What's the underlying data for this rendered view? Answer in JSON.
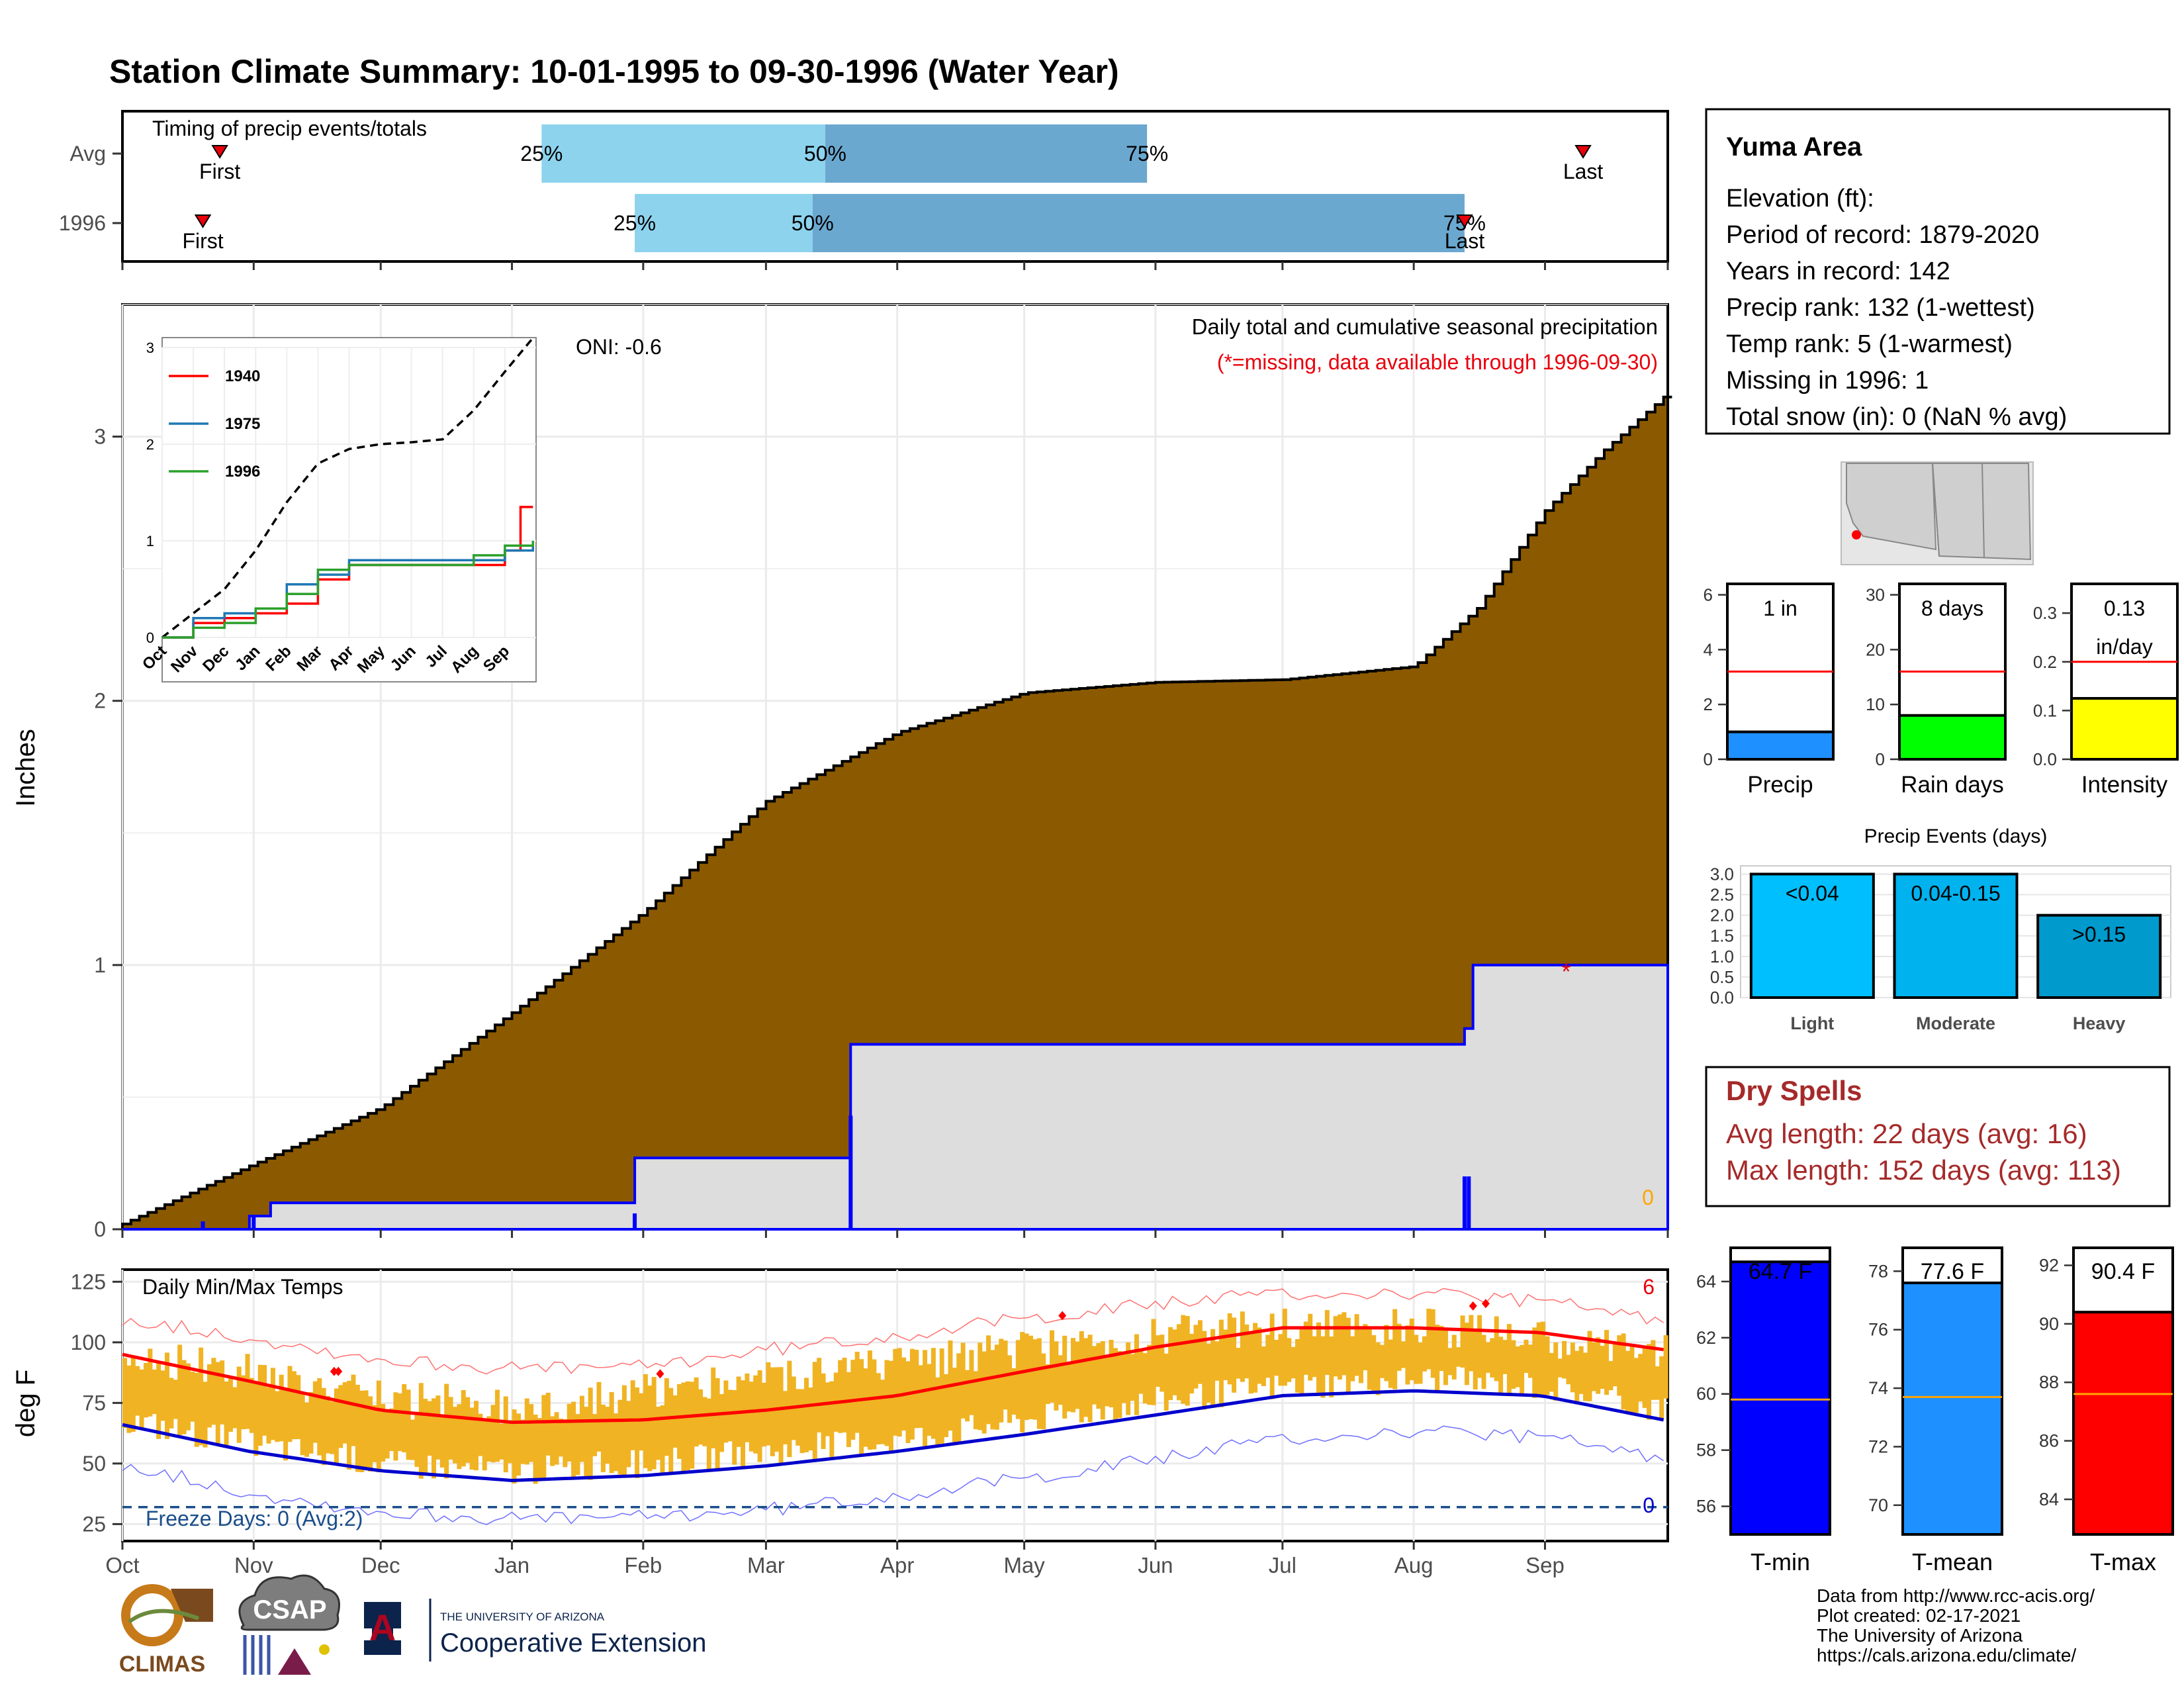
{
  "title": "Station Climate Summary: 10-01-1995 to 09-30-1996 (Water Year)",
  "colors": {
    "title": "#8b2500",
    "precip_cum": "#8b5a00",
    "precip_avg_fill": "#dddddd",
    "precip_line": "#0000ff",
    "tmax_avg": "#ff0000",
    "tmin_avg": "#0000cc",
    "temp_bars": "#f0b323",
    "bar_light": "#8dd3ee",
    "bar_dark": "#6ba8d0",
    "dry_spell": "#a52a2a"
  },
  "timing": {
    "title": "Timing of precip events/totals",
    "rows": [
      {
        "label": "Avg",
        "first_label": "First",
        "last_label": "Last",
        "first_doy": 23,
        "last_doy": 345,
        "p25_doy": 99,
        "p50_doy": 166,
        "p75_doy": 242,
        "p25_label": "25%",
        "p50_label": "50%",
        "p75_label": "75%"
      },
      {
        "label": "1996",
        "first_label": "First",
        "last_label": "Last",
        "first_doy": 19,
        "last_doy": 317,
        "p25_doy": 121,
        "p50_doy": 163,
        "p75_doy": 317,
        "p25_label": "25%",
        "p50_label": "50%",
        "p75_label": "75%"
      }
    ]
  },
  "precip_panel": {
    "title": "Daily total and cumulative seasonal precipitation",
    "subtitle": "(*=missing, data available through 1996-09-30)",
    "ylabel": "Inches",
    "oni": "ONI: -0.6",
    "yticks": [
      "0",
      "1",
      "2",
      "3"
    ],
    "missing_marker": "*",
    "zero_label": "0"
  },
  "inset": {
    "yticks": [
      "0",
      "1",
      "2",
      "3"
    ],
    "xticks": [
      "Oct",
      "Nov",
      "Dec",
      "Jan",
      "Feb",
      "Mar",
      "Apr",
      "May",
      "Jun",
      "Jul",
      "Aug",
      "Sep"
    ],
    "legend": [
      {
        "name": "1940",
        "color": "#ff0000"
      },
      {
        "name": "1975",
        "color": "#1f77b4"
      },
      {
        "name": "1996",
        "color": "#2ca02c"
      }
    ]
  },
  "temp_panel": {
    "title": "Daily Min/Max Temps",
    "ylabel": "deg F",
    "yticks": [
      "25",
      "50",
      "75",
      "100",
      "125"
    ],
    "freeze_label": "Freeze Days: 0 (Avg:2)",
    "count_hot": "6",
    "count_freeze": "0"
  },
  "months": [
    "Oct",
    "Nov",
    "Dec",
    "Jan",
    "Feb",
    "Mar",
    "Apr",
    "May",
    "Jun",
    "Jul",
    "Aug",
    "Sep"
  ],
  "info": {
    "station": "Yuma Area",
    "lines": [
      "Elevation (ft):",
      "Period of record: 1879-2020",
      "Years in record: 142",
      "Precip rank: 132 (1-wettest)",
      "Temp rank: 5 (1-warmest)",
      "Missing in 1996: 1",
      "Total snow (in): 0 (NaN % avg)"
    ]
  },
  "mini_bars": [
    {
      "label": "Precip",
      "value_text": "1 in",
      "value": 1.0,
      "avg": 3.2,
      "ymax": 6.4,
      "ticks": [
        "0",
        "2",
        "4",
        "6"
      ],
      "tick_vals": [
        0,
        2,
        4,
        6
      ],
      "color": "#1e90ff"
    },
    {
      "label": "Rain days",
      "value_text": "8 days",
      "value": 8,
      "avg": 16,
      "ymax": 32,
      "ticks": [
        "0",
        "10",
        "20",
        "30"
      ],
      "tick_vals": [
        0,
        10,
        20,
        30
      ],
      "color": "#00ff00"
    },
    {
      "label": "Intensity",
      "value_text": "0.13",
      "value_text2": "in/day",
      "value": 0.125,
      "avg": 0.2,
      "ymax": 0.36,
      "ticks": [
        "0.0",
        "0.1",
        "0.2",
        "0.3"
      ],
      "tick_vals": [
        0,
        0.1,
        0.2,
        0.3
      ],
      "color": "#ffff00"
    }
  ],
  "precip_events": {
    "title": "Precip Events (days)",
    "yticks": [
      "0.0",
      "0.5",
      "1.0",
      "1.5",
      "2.0",
      "2.5",
      "3.0"
    ],
    "bars": [
      {
        "label": "Light",
        "range": "<0.04",
        "value": 3,
        "color": "#00bfff"
      },
      {
        "label": "Moderate",
        "range": "0.04-0.15",
        "value": 3,
        "color": "#00b2ee"
      },
      {
        "label": "Heavy",
        "range": ">0.15",
        "value": 2,
        "color": "#009acd"
      }
    ]
  },
  "dry_spells": {
    "title": "Dry Spells",
    "avg": "Avg length: 22 days (avg: 16)",
    "max": "Max length: 152 days (avg: 113)"
  },
  "temp_bars": [
    {
      "label": "T-min",
      "value_text": "64.7 F",
      "value": 64.7,
      "avg": 59.8,
      "ymin": 55,
      "ymax": 65.2,
      "ticks": [
        "56",
        "58",
        "60",
        "62",
        "64"
      ],
      "tick_vals": [
        56,
        58,
        60,
        62,
        64
      ],
      "color": "#0000ff"
    },
    {
      "label": "T-mean",
      "value_text": "77.6 F",
      "value": 77.6,
      "avg": 73.7,
      "ymin": 69,
      "ymax": 78.8,
      "ticks": [
        "70",
        "72",
        "74",
        "76",
        "78"
      ],
      "tick_vals": [
        70,
        72,
        74,
        76,
        78
      ],
      "color": "#1e90ff"
    },
    {
      "label": "T-max",
      "value_text": "90.4 F",
      "value": 90.4,
      "avg": 87.6,
      "ymin": 82.8,
      "ymax": 92.6,
      "ticks": [
        "84",
        "86",
        "88",
        "90",
        "92"
      ],
      "tick_vals": [
        84,
        86,
        88,
        90,
        92
      ],
      "color": "#ff0000"
    }
  ],
  "footer": {
    "lines": [
      "Data from http://www.rcc-acis.org/",
      "Plot created: 02-17-2021",
      "The University of Arizona",
      "https://cals.arizona.edu/climate/"
    ],
    "climas": "CLIMAS",
    "csap": "CSAP",
    "ua_small": "THE UNIVERSITY OF ARIZONA",
    "ua_big": "Cooperative Extension",
    "ua_letter": "A"
  },
  "chart_data": [
    {
      "type": "area",
      "title": "Daily total and cumulative seasonal precipitation",
      "ylabel": "Inches",
      "ylim": [
        0,
        3.5
      ],
      "x_months": [
        "Oct",
        "Nov",
        "Dec",
        "Jan",
        "Feb",
        "Mar",
        "Apr",
        "May",
        "Jun",
        "Jul",
        "Aug",
        "Sep"
      ],
      "series": [
        {
          "name": "average cumulative",
          "x_doy": [
            0,
            30,
            61,
            92,
            123,
            152,
            183,
            213,
            244,
            274,
            305,
            320,
            336,
            350,
            364
          ],
          "values": [
            0.02,
            0.24,
            0.46,
            0.82,
            1.2,
            1.62,
            1.88,
            2.03,
            2.07,
            2.08,
            2.13,
            2.35,
            2.72,
            2.95,
            3.15
          ]
        },
        {
          "name": "1996 cumulative",
          "x_doy": [
            0,
            30,
            35,
            121,
            172,
            317,
            319,
            364
          ],
          "values": [
            0.0,
            0.05,
            0.1,
            0.27,
            0.7,
            0.76,
            1.0,
            1.0
          ]
        }
      ]
    },
    {
      "type": "line",
      "title": "inset cumulative comparison",
      "ylim": [
        0,
        3
      ],
      "series": [
        {
          "name": "average",
          "x_month": [
            0,
            1,
            2,
            3,
            4,
            5,
            6,
            7,
            8,
            9,
            10,
            11,
            11.9
          ],
          "values": [
            0.0,
            0.25,
            0.5,
            0.9,
            1.4,
            1.8,
            1.95,
            2.0,
            2.02,
            2.05,
            2.35,
            2.75,
            3.1
          ]
        },
        {
          "name": "1940",
          "x_month": [
            0,
            1,
            2,
            3,
            4,
            5,
            6,
            7,
            8,
            9,
            10,
            11,
            11.5,
            11.9
          ],
          "values": [
            0.0,
            0.15,
            0.2,
            0.25,
            0.35,
            0.6,
            0.75,
            0.75,
            0.75,
            0.75,
            0.75,
            0.9,
            1.35,
            1.35
          ]
        },
        {
          "name": "1975",
          "x_month": [
            0,
            1,
            2,
            3,
            4,
            5,
            6,
            7,
            8,
            9,
            10,
            11,
            11.9
          ],
          "values": [
            0.0,
            0.2,
            0.25,
            0.3,
            0.55,
            0.65,
            0.8,
            0.8,
            0.8,
            0.8,
            0.8,
            0.9,
            0.95
          ]
        },
        {
          "name": "1996",
          "x_month": [
            0,
            1,
            2,
            3,
            4,
            5,
            6,
            7,
            8,
            9,
            10,
            11,
            11.9
          ],
          "values": [
            0.0,
            0.1,
            0.15,
            0.3,
            0.45,
            0.7,
            0.75,
            0.75,
            0.75,
            0.75,
            0.85,
            0.95,
            1.0
          ]
        }
      ]
    },
    {
      "type": "line",
      "title": "Daily Min/Max Temps",
      "ylabel": "deg F",
      "ylim": [
        18,
        130
      ],
      "series": [
        {
          "name": "avg max",
          "x_doy": [
            0,
            30,
            61,
            92,
            123,
            152,
            183,
            213,
            244,
            274,
            305,
            335,
            364
          ],
          "values": [
            95,
            84,
            72,
            67,
            68,
            72,
            78,
            88,
            98,
            106,
            106,
            104,
            97
          ]
        },
        {
          "name": "avg min",
          "x_doy": [
            0,
            30,
            61,
            92,
            123,
            152,
            183,
            213,
            244,
            274,
            305,
            335,
            364
          ],
          "values": [
            66,
            55,
            47,
            43,
            45,
            49,
            55,
            62,
            70,
            78,
            80,
            78,
            68
          ]
        },
        {
          "name": "record max",
          "x_doy": [
            0,
            30,
            61,
            92,
            123,
            152,
            183,
            213,
            244,
            274,
            305,
            335,
            364
          ],
          "values": [
            110,
            102,
            93,
            89,
            90,
            97,
            103,
            110,
            116,
            120,
            120,
            117,
            109
          ]
        },
        {
          "name": "record min",
          "x_doy": [
            0,
            30,
            61,
            92,
            123,
            152,
            183,
            213,
            244,
            274,
            305,
            335,
            364
          ],
          "values": [
            50,
            38,
            30,
            27,
            28,
            31,
            37,
            44,
            52,
            60,
            63,
            61,
            52
          ]
        },
        {
          "name": "daily max 1996",
          "x_doy": [
            0,
            30,
            61,
            92,
            123,
            152,
            183,
            213,
            244,
            274,
            305,
            335,
            364
          ],
          "values": [
            95,
            88,
            76,
            74,
            79,
            85,
            90,
            97,
            103,
            106,
            107,
            102,
            96
          ]
        },
        {
          "name": "daily min 1996",
          "x_doy": [
            0,
            30,
            61,
            92,
            123,
            152,
            183,
            213,
            244,
            274,
            305,
            335,
            364
          ],
          "values": [
            68,
            58,
            50,
            47,
            50,
            55,
            60,
            68,
            76,
            82,
            85,
            82,
            72
          ]
        }
      ],
      "freeze_threshold": 32
    }
  ]
}
